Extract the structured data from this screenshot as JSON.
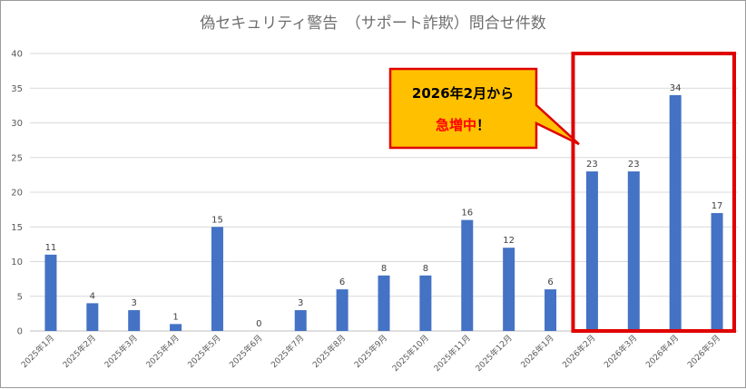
{
  "chart_data": {
    "type": "bar",
    "title": "偽セキュリティ警告　（サポート詐欺）問合せ件数",
    "categories": [
      "2025年1月",
      "2025年2月",
      "2025年3月",
      "2025年4月",
      "2025年5月",
      "2025年6月",
      "2025年7月",
      "2025年8月",
      "2025年9月",
      "2025年10月",
      "2025年11月",
      "2025年12月",
      "2026年1月",
      "2026年2月",
      "2026年3月",
      "2026年4月",
      "2026年5月"
    ],
    "values": [
      11,
      4,
      3,
      1,
      15,
      0,
      3,
      6,
      8,
      8,
      16,
      12,
      6,
      23,
      23,
      34,
      17
    ],
    "ylim": [
      0,
      40
    ],
    "yticks": [
      0,
      5,
      10,
      15,
      20,
      25,
      30,
      35,
      40
    ],
    "grid": true,
    "bar_color": "#4472c4",
    "highlight": {
      "categories": [
        "2026年2月",
        "2026年3月",
        "2026年4月",
        "2026年5月"
      ],
      "border_color": "#e00000"
    },
    "callout": {
      "line1": "2026年2月から",
      "line2_em": "急増中",
      "line2_rest": "！",
      "fill": "#ffc000",
      "border": "#e00000"
    }
  }
}
